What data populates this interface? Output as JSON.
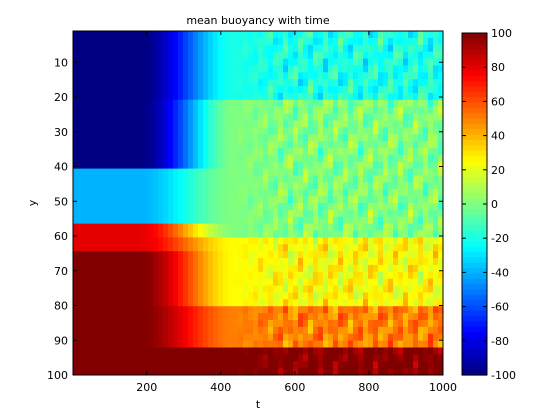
{
  "chart_data": {
    "type": "heatmap",
    "title": "mean buoyancy with time",
    "xlabel": "t",
    "ylabel": "y",
    "xlim": [
      1,
      1000
    ],
    "ylim": [
      1,
      100
    ],
    "y_reversed": true,
    "x_ticks": [
      "200",
      "400",
      "600",
      "800",
      "1000"
    ],
    "y_ticks": [
      "10",
      "20",
      "30",
      "40",
      "50",
      "60",
      "70",
      "80",
      "90",
      "100"
    ],
    "colorbar": {
      "colormap": "jet",
      "clim": [
        -100,
        100
      ],
      "ticks": [
        "100",
        "80",
        "60",
        "40",
        "20",
        "0",
        "-20",
        "-40",
        "-60",
        "-80",
        "-100"
      ]
    },
    "field_description": {
      "initial_state_t_lt_180": [
        {
          "y_range": [
            1,
            40
          ],
          "value": -100
        },
        {
          "y_range": [
            40,
            57
          ],
          "value": -40
        },
        {
          "y_range": [
            57,
            65
          ],
          "value": 80
        },
        {
          "y_range": [
            65,
            100
          ],
          "value": 100
        }
      ],
      "mixed_state_t_gt_400": [
        {
          "y_range": [
            1,
            20
          ],
          "value": -20
        },
        {
          "y_range": [
            20,
            60
          ],
          "value": 0
        },
        {
          "y_range": [
            60,
            80
          ],
          "value": 25
        },
        {
          "y_range": [
            80,
            90
          ],
          "value": 50
        },
        {
          "y_range": [
            93,
            100
          ],
          "value": 100
        }
      ]
    }
  }
}
